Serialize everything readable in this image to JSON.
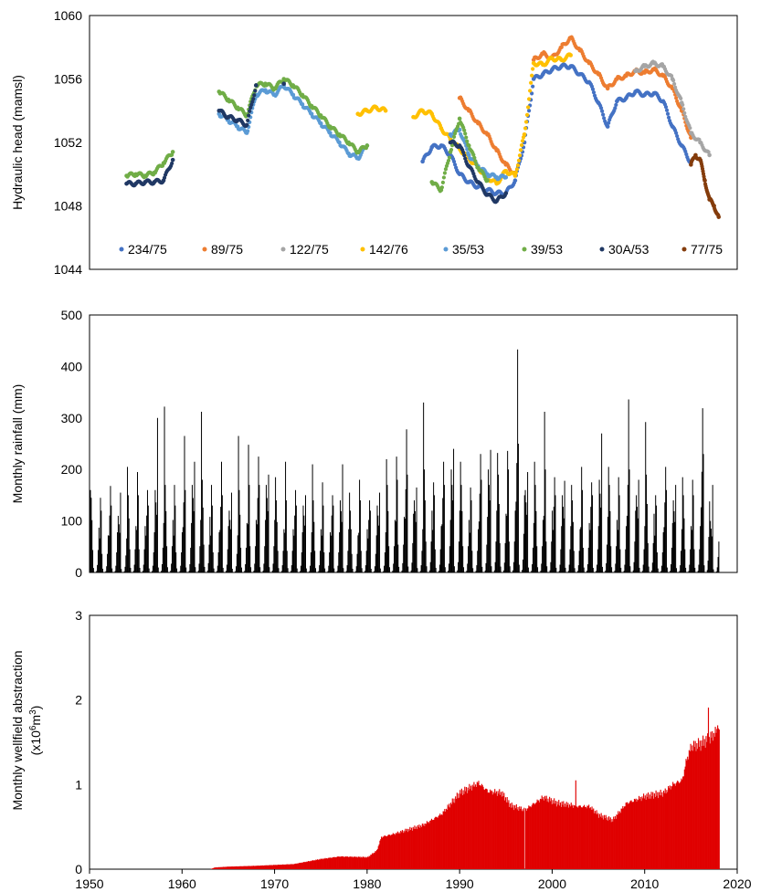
{
  "chart_data": [
    {
      "type": "scatter",
      "ylabel": "Hydraulic head (mamsl)",
      "xlim": [
        1950,
        2020
      ],
      "ylim": [
        1044,
        1060
      ],
      "yticks": [
        1044,
        1048,
        1052,
        1056,
        1060
      ],
      "legend_position": "bottom",
      "series": [
        {
          "name": "234/75",
          "color": "#4472C4",
          "points": [
            [
              1986.0,
              1050.8
            ],
            [
              1987.0,
              1051.7
            ],
            [
              1988.0,
              1051.8
            ],
            [
              1989.0,
              1051.2
            ],
            [
              1990.0,
              1050.0
            ],
            [
              1991.0,
              1049.5
            ],
            [
              1992.0,
              1049.2
            ],
            [
              1993.0,
              1049.0
            ],
            [
              1994.0,
              1048.8
            ],
            [
              1995.0,
              1048.8
            ],
            [
              1996.0,
              1049.6
            ],
            [
              1997.0,
              1052.0
            ],
            [
              1998.0,
              1056.0
            ],
            [
              1999.0,
              1056.3
            ],
            [
              2000.0,
              1056.6
            ],
            [
              2001.0,
              1056.8
            ],
            [
              2002.0,
              1056.8
            ],
            [
              2003.0,
              1056.3
            ],
            [
              2004.0,
              1055.8
            ],
            [
              2005.0,
              1054.5
            ],
            [
              2006.0,
              1053.0
            ],
            [
              2007.0,
              1054.6
            ],
            [
              2008.0,
              1054.8
            ],
            [
              2009.0,
              1055.2
            ],
            [
              2010.0,
              1055.0
            ],
            [
              2011.0,
              1055.1
            ],
            [
              2012.0,
              1054.6
            ],
            [
              2013.0,
              1053.0
            ],
            [
              2014.0,
              1051.8
            ],
            [
              2015.0,
              1050.7
            ]
          ]
        },
        {
          "name": "89/75",
          "color": "#ED7D31",
          "points": [
            [
              1990.0,
              1054.8
            ],
            [
              1991.0,
              1054.0
            ],
            [
              1992.0,
              1053.2
            ],
            [
              1993.0,
              1052.5
            ],
            [
              1994.0,
              1051.5
            ],
            [
              1995.0,
              1050.6
            ],
            [
              1996.0,
              1050.0
            ],
            [
              1998.0,
              1057.2
            ],
            [
              1999.0,
              1057.6
            ],
            [
              2000.0,
              1057.3
            ],
            [
              2001.0,
              1058.0
            ],
            [
              2002.0,
              1058.6
            ],
            [
              2003.0,
              1057.8
            ],
            [
              2004.0,
              1057.0
            ],
            [
              2005.0,
              1056.3
            ],
            [
              2006.0,
              1055.4
            ],
            [
              2007.0,
              1056.0
            ],
            [
              2008.0,
              1056.2
            ],
            [
              2009.0,
              1056.5
            ],
            [
              2010.0,
              1056.4
            ],
            [
              2011.0,
              1056.6
            ],
            [
              2012.0,
              1056.2
            ],
            [
              2013.0,
              1055.4
            ],
            [
              2014.0,
              1054.0
            ],
            [
              2015.0,
              1052.3
            ]
          ]
        },
        {
          "name": "122/75",
          "color": "#A5A5A5",
          "points": [
            [
              2009.0,
              1056.5
            ],
            [
              2010.0,
              1056.8
            ],
            [
              2011.0,
              1057.0
            ],
            [
              2012.0,
              1056.8
            ],
            [
              2013.0,
              1056.0
            ],
            [
              2014.0,
              1054.5
            ],
            [
              2015.0,
              1052.6
            ],
            [
              2016.0,
              1052.0
            ],
            [
              2017.0,
              1051.2
            ]
          ]
        },
        {
          "name": "142/76",
          "color": "#FFC000",
          "points": [
            [
              1979.0,
              1053.8
            ],
            [
              1980.0,
              1054.0
            ],
            [
              1981.0,
              1054.2
            ],
            [
              1982.0,
              1054.0
            ],
            [
              1985.0,
              1053.6
            ],
            [
              1986.0,
              1054.0
            ],
            [
              1987.0,
              1053.8
            ],
            [
              1988.0,
              1052.9
            ],
            [
              1989.0,
              1052.2
            ],
            [
              1990.0,
              1051.6
            ],
            [
              1991.0,
              1051.0
            ],
            [
              1992.0,
              1050.4
            ],
            [
              1993.0,
              1049.8
            ],
            [
              1994.0,
              1049.4
            ],
            [
              1995.0,
              1050.2
            ],
            [
              1996.0,
              1049.9
            ],
            [
              1997.0,
              1052.5
            ],
            [
              1998.0,
              1057.0
            ],
            [
              1999.0,
              1056.9
            ],
            [
              2000.0,
              1057.3
            ],
            [
              2001.0,
              1057.2
            ],
            [
              2002.0,
              1057.5
            ]
          ]
        },
        {
          "name": "35/53",
          "color": "#5B9BD5",
          "points": [
            [
              1964.0,
              1053.8
            ],
            [
              1965.0,
              1053.4
            ],
            [
              1966.0,
              1053.0
            ],
            [
              1967.0,
              1052.6
            ],
            [
              1968.0,
              1055.0
            ],
            [
              1969.0,
              1055.3
            ],
            [
              1970.0,
              1055.0
            ],
            [
              1971.0,
              1055.6
            ],
            [
              1972.0,
              1055.0
            ],
            [
              1973.0,
              1054.4
            ],
            [
              1974.0,
              1053.8
            ],
            [
              1975.0,
              1053.2
            ],
            [
              1976.0,
              1052.6
            ],
            [
              1977.0,
              1052.0
            ],
            [
              1978.0,
              1051.3
            ],
            [
              1979.0,
              1051.0
            ],
            [
              1980.0,
              1051.8
            ],
            [
              1989.0,
              1052.5
            ],
            [
              1990.0,
              1052.8
            ],
            [
              1991.0,
              1051.2
            ],
            [
              1992.0,
              1050.5
            ],
            [
              1993.0,
              1050.0
            ],
            [
              1994.0,
              1049.8
            ],
            [
              1995.0,
              1049.8
            ]
          ]
        },
        {
          "name": "39/53",
          "color": "#70AD47",
          "points": [
            [
              1954.0,
              1049.9
            ],
            [
              1955.0,
              1050.0
            ],
            [
              1956.0,
              1049.9
            ],
            [
              1957.0,
              1050.1
            ],
            [
              1958.0,
              1050.7
            ],
            [
              1959.0,
              1051.4
            ],
            [
              1964.0,
              1055.2
            ],
            [
              1965.0,
              1054.7
            ],
            [
              1966.0,
              1054.2
            ],
            [
              1967.0,
              1053.7
            ],
            [
              1968.0,
              1055.6
            ],
            [
              1969.0,
              1055.7
            ],
            [
              1970.0,
              1055.4
            ],
            [
              1971.0,
              1056.0
            ],
            [
              1972.0,
              1055.6
            ],
            [
              1973.0,
              1055.0
            ],
            [
              1974.0,
              1054.3
            ],
            [
              1975.0,
              1053.7
            ],
            [
              1976.0,
              1053.0
            ],
            [
              1977.0,
              1052.5
            ],
            [
              1978.0,
              1052.0
            ],
            [
              1979.0,
              1051.4
            ],
            [
              1980.0,
              1051.8
            ],
            [
              1987.0,
              1049.5
            ],
            [
              1988.0,
              1049.0
            ],
            [
              1989.0,
              1051.4
            ],
            [
              1990.0,
              1053.5
            ],
            [
              1991.0,
              1051.8
            ],
            [
              1992.0,
              1050.4
            ],
            [
              1993.0,
              1049.6
            ]
          ]
        },
        {
          "name": "30A/53",
          "color": "#203864",
          "points": [
            [
              1954.0,
              1049.4
            ],
            [
              1955.0,
              1049.4
            ],
            [
              1956.0,
              1049.5
            ],
            [
              1957.0,
              1049.5
            ],
            [
              1958.0,
              1049.6
            ],
            [
              1959.0,
              1050.9
            ],
            [
              1964.0,
              1054.0
            ],
            [
              1965.0,
              1053.6
            ],
            [
              1966.0,
              1053.4
            ],
            [
              1967.0,
              1053.1
            ],
            [
              1968.0,
              1055.6
            ],
            [
              1971.0,
              1055.7
            ],
            [
              1989.0,
              1052.0
            ],
            [
              1990.0,
              1051.8
            ],
            [
              1991.0,
              1050.5
            ],
            [
              1992.0,
              1049.5
            ],
            [
              1993.0,
              1048.7
            ],
            [
              1994.0,
              1048.3
            ],
            [
              1995.0,
              1048.8
            ]
          ]
        },
        {
          "name": "77/75",
          "color": "#843C0C",
          "points": [
            [
              2015.0,
              1050.6
            ],
            [
              2015.5,
              1051.2
            ],
            [
              2016.0,
              1050.9
            ],
            [
              2016.5,
              1049.6
            ],
            [
              2017.0,
              1048.4
            ],
            [
              2017.5,
              1048.0
            ],
            [
              2018.0,
              1047.3
            ]
          ]
        }
      ]
    },
    {
      "type": "bar",
      "ylabel": "Monthly rainfall (mm)",
      "xlim": [
        1950,
        2020
      ],
      "ylim": [
        0,
        500
      ],
      "yticks": [
        0,
        100,
        200,
        300,
        400,
        500
      ],
      "color": "#000000",
      "x": [
        1951,
        1952,
        1953,
        1954,
        1955,
        1956,
        1957,
        1958,
        1959,
        1960,
        1961,
        1962,
        1963,
        1964,
        1965,
        1966,
        1967,
        1968,
        1969,
        1970,
        1971,
        1972,
        1973,
        1974,
        1975,
        1976,
        1977,
        1978,
        1979,
        1980,
        1981,
        1982,
        1983,
        1984,
        1985,
        1986,
        1987,
        1988,
        1989,
        1990,
        1991,
        1992,
        1993,
        1994,
        1995,
        1996,
        1997,
        1998,
        1999,
        2000,
        2001,
        2002,
        2003,
        2004,
        2005,
        2006,
        2007,
        2008,
        2009,
        2010,
        2011,
        2012,
        2013,
        2014,
        2015,
        2016,
        2017,
        2018
      ],
      "peaks": [
        160,
        145,
        168,
        155,
        205,
        195,
        160,
        300,
        322,
        170,
        265,
        215,
        312,
        170,
        215,
        155,
        265,
        248,
        225,
        190,
        185,
        215,
        160,
        150,
        210,
        175,
        150,
        210,
        155,
        180,
        140,
        155,
        220,
        225,
        278,
        165,
        330,
        175,
        215,
        240,
        215,
        165,
        230,
        238,
        232,
        236,
        433,
        195,
        215,
        312,
        185,
        178,
        170,
        205,
        175,
        270,
        205,
        185,
        336,
        180,
        292,
        150,
        205,
        170,
        185,
        180,
        319,
        170
      ],
      "secondaries": [
        145,
        120,
        130,
        110,
        150,
        150,
        130,
        160,
        170,
        130,
        160,
        170,
        180,
        130,
        150,
        120,
        160,
        170,
        170,
        170,
        140,
        140,
        130,
        130,
        140,
        130,
        130,
        140,
        120,
        140,
        120,
        130,
        170,
        180,
        190,
        140,
        200,
        150,
        170,
        200,
        170,
        140,
        180,
        200,
        190,
        200,
        250,
        160,
        170,
        200,
        150,
        150,
        140,
        160,
        150,
        180,
        170,
        150,
        200,
        150,
        190,
        130,
        160,
        140,
        150,
        150,
        230,
        100
      ]
    },
    {
      "type": "bar",
      "ylabel": "Monthly wellfield abstraction",
      "ylabel_line2_prefix": "(x10",
      "ylabel_line2_sup": "6",
      "ylabel_line2_mid": "m",
      "ylabel_line2_sup2": "3",
      "ylabel_line2_suffix": ")",
      "xlabel": "",
      "xlim": [
        1950,
        2020
      ],
      "ylim": [
        0,
        3
      ],
      "yticks": [
        0,
        1,
        2,
        3
      ],
      "xticks": [
        1950,
        1960,
        1970,
        1980,
        1990,
        2000,
        2010,
        2020
      ],
      "color": "#E00000",
      "points": [
        [
          1963.0,
          0.0
        ],
        [
          1963.5,
          0.02
        ],
        [
          1965.0,
          0.03
        ],
        [
          1968.0,
          0.04
        ],
        [
          1972.0,
          0.06
        ],
        [
          1975.0,
          0.12
        ],
        [
          1977.0,
          0.15
        ],
        [
          1980.0,
          0.14
        ],
        [
          1981.0,
          0.22
        ],
        [
          1981.5,
          0.38
        ],
        [
          1983.0,
          0.42
        ],
        [
          1986.0,
          0.52
        ],
        [
          1988.0,
          0.65
        ],
        [
          1990.0,
          0.9
        ],
        [
          1991.0,
          0.96
        ],
        [
          1992.0,
          1.02
        ],
        [
          1993.0,
          0.92
        ],
        [
          1994.5,
          0.9
        ],
        [
          1995.5,
          0.75
        ],
        [
          1997.0,
          0.7
        ],
        [
          1999.0,
          0.85
        ],
        [
          2000.5,
          0.78
        ],
        [
          2003.0,
          0.74
        ],
        [
          2004.0,
          0.74
        ],
        [
          2005.0,
          0.64
        ],
        [
          2006.5,
          0.58
        ],
        [
          2008.0,
          0.78
        ],
        [
          2010.0,
          0.86
        ],
        [
          2012.0,
          0.9
        ],
        [
          2013.0,
          1.0
        ],
        [
          2014.0,
          1.05
        ],
        [
          2014.5,
          1.3
        ],
        [
          2015.0,
          1.45
        ],
        [
          2016.0,
          1.48
        ],
        [
          2017.0,
          1.55
        ],
        [
          2018.0,
          1.66
        ]
      ],
      "spikes": [
        [
          1997.0,
          0.0
        ],
        [
          2002.5,
          1.05
        ],
        [
          2016.8,
          1.91
        ],
        [
          2017.8,
          1.7
        ]
      ]
    }
  ]
}
